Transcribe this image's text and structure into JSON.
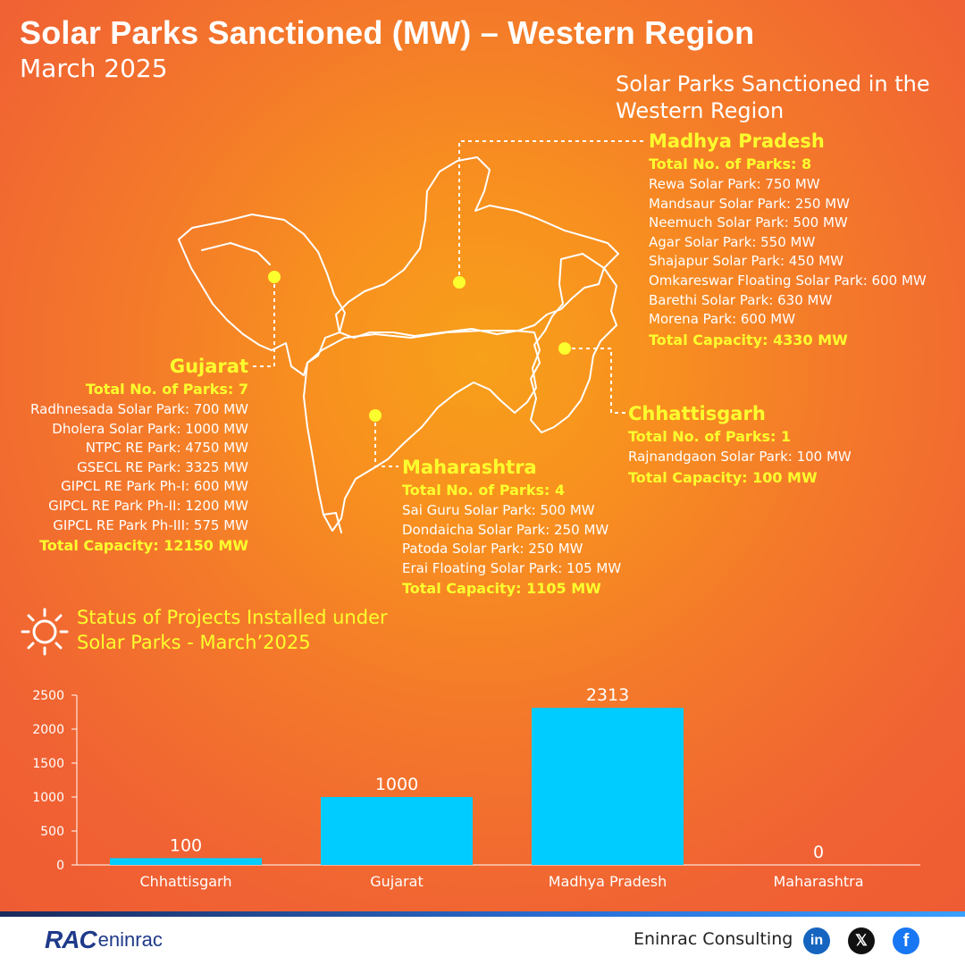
{
  "header": {
    "title": "Solar Parks Sanctioned (MW) – Western Region",
    "subtitle": "March 2025"
  },
  "map": {
    "caption": "Solar Parks Sanctioned in the Western Region",
    "regions": {
      "madhya_pradesh": {
        "name": "Madhya Pradesh",
        "count": "Total No. of Parks: 8",
        "parks": [
          "Rewa Solar Park: 750 MW",
          "Mandsaur Solar Park: 250 MW",
          "Neemuch Solar Park: 500 MW",
          "Agar Solar Park: 550 MW",
          "Shajapur Solar Park: 450 MW",
          "Omkareswar Floating Solar Park: 600 MW",
          "Barethi Solar Park: 630 MW",
          "Morena Park: 600 MW"
        ],
        "total": "Total Capacity: 4330 MW"
      },
      "gujarat": {
        "name": "Gujarat",
        "count": "Total No. of Parks: 7",
        "parks": [
          "Radhnesada Solar Park: 700 MW",
          "Dholera Solar Park: 1000 MW",
          "NTPC RE Park: 4750 MW",
          "GSECL RE Park: 3325 MW",
          "GIPCL RE Park Ph-I: 600 MW",
          "GIPCL RE Park Ph-II: 1200 MW",
          "GIPCL RE Park Ph-III: 575 MW"
        ],
        "total": "Total Capacity: 12150 MW"
      },
      "chhattisgarh": {
        "name": "Chhattisgarh",
        "count": "Total No. of Parks: 1",
        "parks": [
          "Rajnandgaon Solar Park: 100 MW"
        ],
        "total": "Total Capacity: 100 MW"
      },
      "maharashtra": {
        "name": "Maharashtra",
        "count": "Total No. of Parks: 4",
        "parks": [
          "Sai Guru Solar Park: 500 MW",
          "Dondaicha Solar Park: 250 MW",
          "Patoda Solar Park: 250 MW",
          "Erai Floating Solar Park: 105 MW"
        ],
        "total": "Total Capacity: 1105 MW"
      }
    }
  },
  "status": {
    "title_line1": "Status of Projects Installed under",
    "title_line2": "Solar Parks - March’2025",
    "icon": "sun-icon"
  },
  "chart_data": {
    "type": "bar",
    "title": "Status of Projects Installed under Solar Parks - March’2025",
    "categories": [
      "Chhattisgarh",
      "Gujarat",
      "Madhya Pradesh",
      "Maharashtra"
    ],
    "values": [
      100,
      1000,
      2313,
      0
    ],
    "value_labels": [
      "100",
      "1000",
      "2313",
      "0"
    ],
    "ylim": [
      0,
      2500
    ],
    "yticks": [
      "0",
      "500",
      "1000",
      "1500",
      "2000",
      "2500"
    ],
    "xlabel": "",
    "ylabel": "",
    "grid": false,
    "legend": "none",
    "bar_color": "#00ccff"
  },
  "footer": {
    "logo_main": "RAC",
    "logo_sub": "eninrac",
    "brand": "Eninrac Consulting",
    "social": [
      "linkedin-icon",
      "x-icon",
      "facebook-icon"
    ],
    "social_glyphs": {
      "linkedin": "in",
      "x": "𝕏",
      "facebook": "f"
    }
  },
  "colors": {
    "accent_yellow": "#fbff2e",
    "bar": "#00ccff",
    "background": "#f47a2a"
  }
}
